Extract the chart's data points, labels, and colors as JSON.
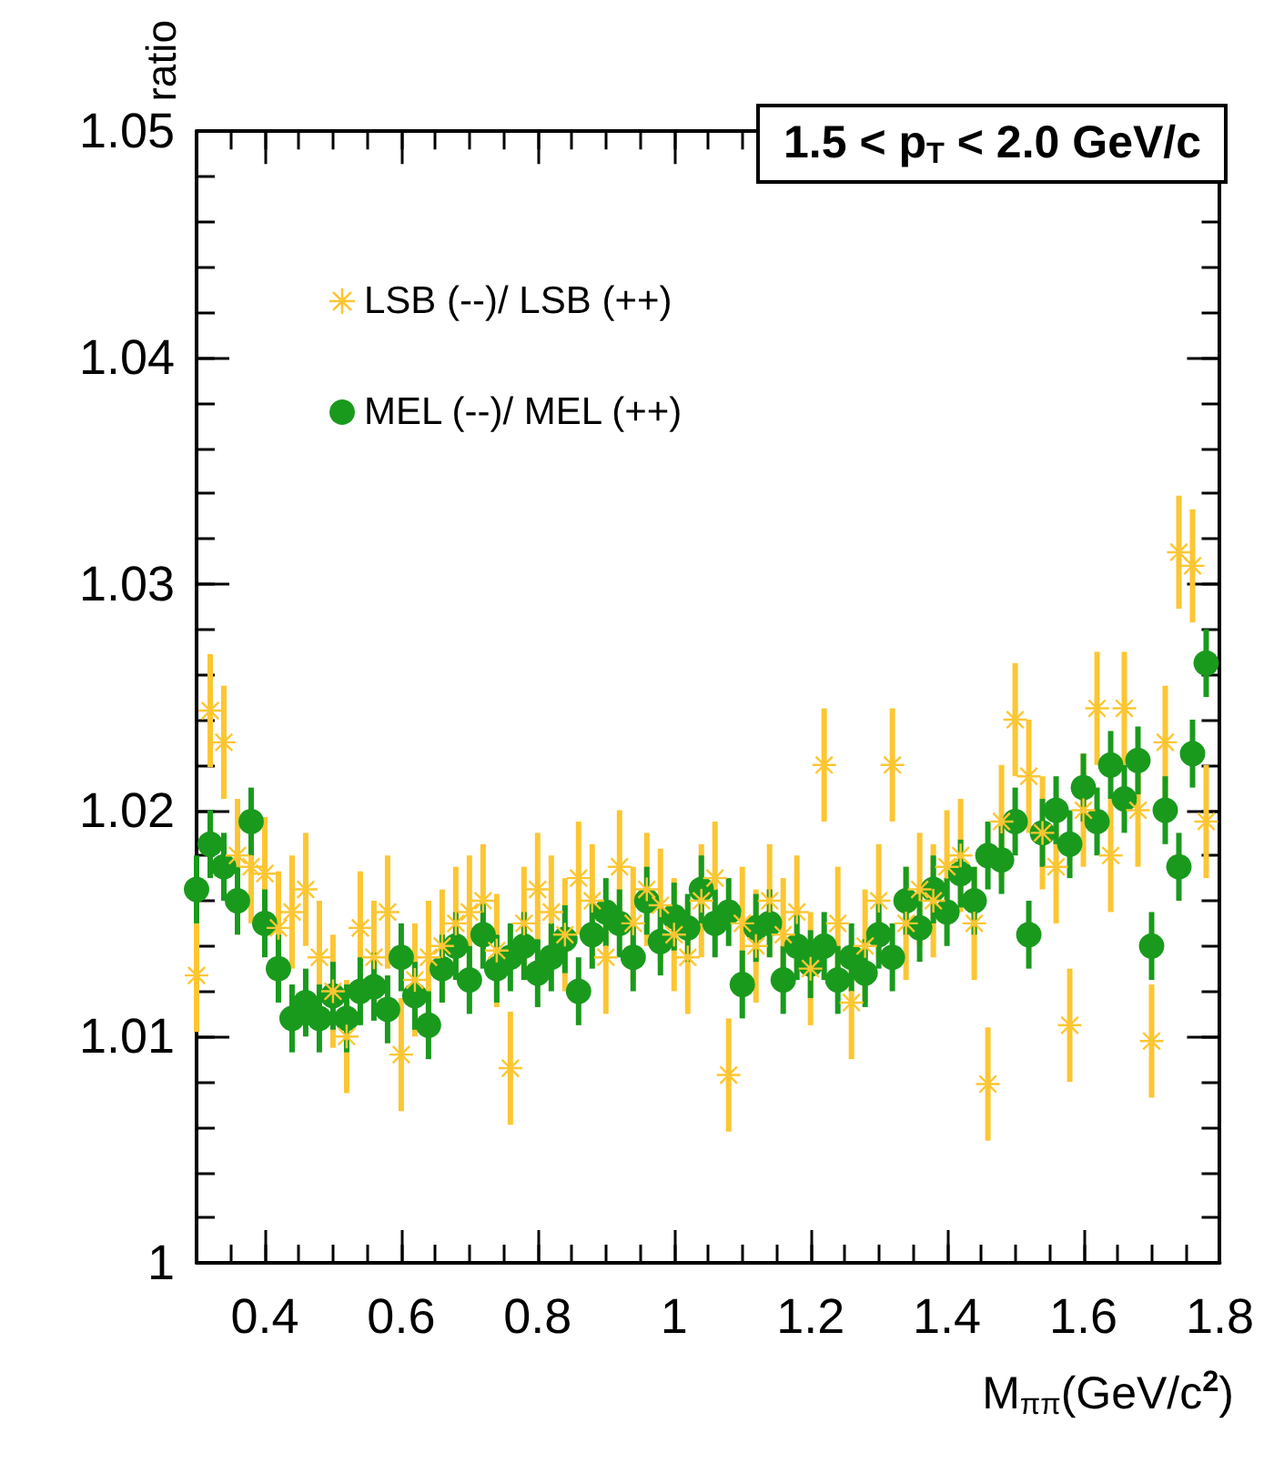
{
  "chart_data": {
    "type": "scatter",
    "xlabel": "M$_{ππ}$(GeV/c$^{2}$)",
    "ylabel": "ratio",
    "annotations": [
      "1.5 < p$_{T}$ < 2.0 GeV/c"
    ],
    "xlim": [
      0.3,
      1.8
    ],
    "xticks": [
      0.4,
      0.6,
      0.8,
      1,
      1.2,
      1.4,
      1.6,
      1.8
    ],
    "ylim": [
      1,
      1.05
    ],
    "yticks": [
      1,
      1.01,
      1.02,
      1.03,
      1.04,
      1.05
    ],
    "grid": false,
    "legend": "top left",
    "x": [
      0.3,
      0.32,
      0.34,
      0.36,
      0.38,
      0.4,
      0.42,
      0.44,
      0.46,
      0.48,
      0.5,
      0.52,
      0.54,
      0.56,
      0.58,
      0.6,
      0.62,
      0.64,
      0.66,
      0.68,
      0.7,
      0.72,
      0.74,
      0.76,
      0.78,
      0.8,
      0.82,
      0.84,
      0.86,
      0.88,
      0.9,
      0.92,
      0.94,
      0.96,
      0.98,
      1.0,
      1.02,
      1.04,
      1.06,
      1.08,
      1.1,
      1.12,
      1.14,
      1.16,
      1.18,
      1.2,
      1.22,
      1.24,
      1.26,
      1.28,
      1.3,
      1.32,
      1.34,
      1.36,
      1.38,
      1.4,
      1.42,
      1.44,
      1.46,
      1.48,
      1.5,
      1.52,
      1.54,
      1.56,
      1.58,
      1.6,
      1.62,
      1.64,
      1.66,
      1.68,
      1.7,
      1.72,
      1.74,
      1.76,
      1.78
    ],
    "series": [
      {
        "name": "LSB (--)/ LSB (++)",
        "color": "#fcc633",
        "marker": "star",
        "values": [
          1.0127,
          1.0244,
          1.023,
          1.018,
          1.0175,
          1.0172,
          1.0148,
          1.0155,
          1.0165,
          1.0135,
          1.012,
          1.01,
          1.0148,
          1.0135,
          1.0155,
          1.0092,
          1.0125,
          1.0135,
          1.014,
          1.015,
          1.0155,
          1.016,
          1.0138,
          1.0086,
          1.015,
          1.0165,
          1.0155,
          1.0145,
          1.017,
          1.016,
          1.0135,
          1.0175,
          1.015,
          1.0165,
          1.0158,
          1.0145,
          1.0135,
          1.016,
          1.017,
          1.0083,
          1.015,
          1.014,
          1.016,
          1.0145,
          1.0155,
          1.013,
          1.022,
          1.015,
          1.0115,
          1.014,
          1.016,
          1.022,
          1.015,
          1.0165,
          1.016,
          1.0175,
          1.018,
          1.015,
          1.0079,
          1.0195,
          1.024,
          1.0215,
          1.019,
          1.0175,
          1.0105,
          1.02,
          1.0245,
          1.018,
          1.0245,
          1.02,
          1.0098,
          1.023,
          1.0314,
          1.0308,
          1.0195
        ],
        "errors": [
          0.0025,
          0.0025,
          0.0025,
          0.0025,
          0.0025,
          0.0025,
          0.0025,
          0.0025,
          0.0025,
          0.0025,
          0.0025,
          0.0025,
          0.0025,
          0.0025,
          0.0025,
          0.0025,
          0.0025,
          0.0025,
          0.0025,
          0.0025,
          0.0025,
          0.0025,
          0.0025,
          0.0025,
          0.0025,
          0.0025,
          0.0025,
          0.0025,
          0.0025,
          0.0025,
          0.0025,
          0.0025,
          0.0025,
          0.0025,
          0.0025,
          0.0025,
          0.0025,
          0.0025,
          0.0025,
          0.0025,
          0.0025,
          0.0025,
          0.0025,
          0.0025,
          0.0025,
          0.0025,
          0.0025,
          0.0025,
          0.0025,
          0.0025,
          0.0025,
          0.0025,
          0.0025,
          0.0025,
          0.0025,
          0.0025,
          0.0025,
          0.0025,
          0.0025,
          0.0025,
          0.0025,
          0.0025,
          0.0025,
          0.0025,
          0.0025,
          0.0025,
          0.0025,
          0.0025,
          0.0025,
          0.0025,
          0.0025,
          0.0025,
          0.0025,
          0.0025,
          0.0025
        ]
      },
      {
        "name": "MEL (--)/ MEL (++)",
        "color": "#199a1d",
        "marker": "circle",
        "values": [
          1.0165,
          1.0185,
          1.0175,
          1.016,
          1.0195,
          1.015,
          1.013,
          1.0108,
          1.0115,
          1.0108,
          1.0118,
          1.0108,
          1.012,
          1.0122,
          1.0112,
          1.0135,
          1.0118,
          1.0105,
          1.013,
          1.014,
          1.0125,
          1.0145,
          1.013,
          1.0135,
          1.014,
          1.0128,
          1.0135,
          1.0143,
          1.012,
          1.0145,
          1.0155,
          1.015,
          1.0135,
          1.016,
          1.0142,
          1.0153,
          1.0148,
          1.0165,
          1.015,
          1.0155,
          1.0123,
          1.0148,
          1.015,
          1.0125,
          1.014,
          1.0132,
          1.014,
          1.0125,
          1.0135,
          1.0128,
          1.0145,
          1.0135,
          1.016,
          1.0148,
          1.0165,
          1.0155,
          1.0172,
          1.016,
          1.018,
          1.0178,
          1.0195,
          1.0145,
          1.019,
          1.02,
          1.0185,
          1.021,
          1.0195,
          1.022,
          1.0205,
          1.0222,
          1.014,
          1.02,
          1.0175,
          1.0225,
          1.0265
        ],
        "errors": [
          0.0015,
          0.0015,
          0.0015,
          0.0015,
          0.0015,
          0.0015,
          0.0015,
          0.0015,
          0.0015,
          0.0015,
          0.0015,
          0.0015,
          0.0015,
          0.0015,
          0.0015,
          0.0015,
          0.0015,
          0.0015,
          0.0015,
          0.0015,
          0.0015,
          0.0015,
          0.0015,
          0.0015,
          0.0015,
          0.0015,
          0.0015,
          0.0015,
          0.0015,
          0.0015,
          0.0015,
          0.0015,
          0.0015,
          0.0015,
          0.0015,
          0.0015,
          0.0015,
          0.0015,
          0.0015,
          0.0015,
          0.0015,
          0.0015,
          0.0015,
          0.0015,
          0.0015,
          0.0015,
          0.0015,
          0.0015,
          0.0015,
          0.0015,
          0.0015,
          0.0015,
          0.0015,
          0.0015,
          0.0015,
          0.0015,
          0.0015,
          0.0015,
          0.0015,
          0.0015,
          0.0015,
          0.0015,
          0.0015,
          0.0015,
          0.0015,
          0.0015,
          0.0015,
          0.0015,
          0.0015,
          0.0015,
          0.0015,
          0.0015,
          0.0015,
          0.0015,
          0.0015
        ]
      }
    ]
  }
}
